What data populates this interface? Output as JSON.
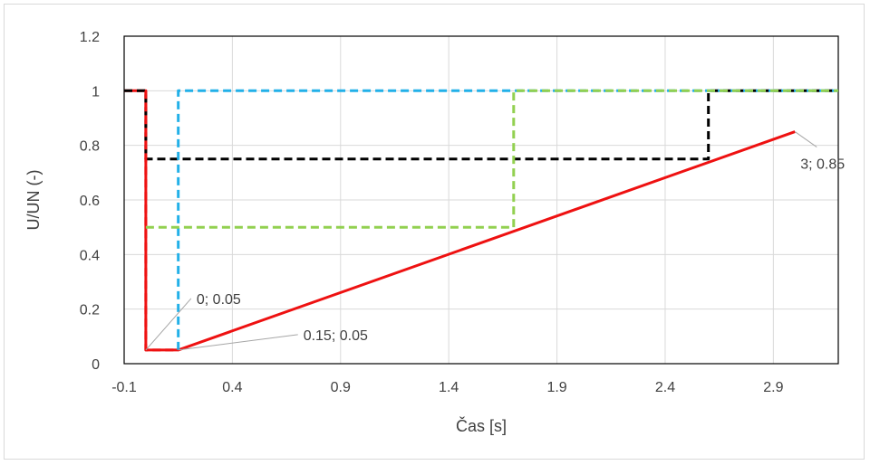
{
  "chart_data": {
    "type": "line",
    "title": "",
    "xlabel": "Čas [s]",
    "ylabel": "U/UN (-)",
    "xlim": [
      -0.1,
      3.2
    ],
    "ylim": [
      0,
      1.2
    ],
    "x_ticks": [
      -0.1,
      0.4,
      0.9,
      1.4,
      1.9,
      2.4,
      2.9
    ],
    "x_tick_labels": [
      "-0.1",
      "0.4",
      "0.9",
      "1.4",
      "1.9",
      "2.4",
      "2.9"
    ],
    "y_ticks": [
      0,
      0.2,
      0.4,
      0.6,
      0.8,
      1,
      1.2
    ],
    "y_tick_labels": [
      "0",
      "0.2",
      "0.4",
      "0.6",
      "0.8",
      "1",
      "1.2"
    ],
    "grid": true,
    "legend": "none",
    "series": [
      {
        "color": "#ee1111",
        "style": "solid",
        "points": [
          [
            -0.1,
            1
          ],
          [
            0,
            1
          ],
          [
            0,
            0.05
          ],
          [
            0.15,
            0.05
          ],
          [
            3,
            0.85
          ]
        ]
      },
      {
        "color": "#000000",
        "style": "dashed",
        "points": [
          [
            -0.1,
            1
          ],
          [
            0,
            1
          ],
          [
            0,
            0.75
          ],
          [
            2.6,
            0.75
          ],
          [
            2.6,
            1
          ],
          [
            3.2,
            1
          ]
        ]
      },
      {
        "color": "#22b0e8",
        "style": "dashed",
        "points": [
          [
            0.15,
            0.05
          ],
          [
            0.15,
            1
          ],
          [
            3.2,
            1
          ]
        ]
      },
      {
        "color": "#92d050",
        "style": "dashed",
        "points": [
          [
            0,
            0.5
          ],
          [
            1.7,
            0.5
          ],
          [
            1.7,
            1
          ],
          [
            3.2,
            1
          ]
        ]
      },
      {
        "color": "#ee1111",
        "style": "dashed",
        "points": [
          [
            0,
            1
          ],
          [
            0,
            0.05
          ],
          [
            0.15,
            0.05
          ]
        ]
      }
    ],
    "annotations": [
      {
        "text": "0; 0.05",
        "x": 0,
        "y": 0.05
      },
      {
        "text": "0.15; 0.05",
        "x": 0.15,
        "y": 0.05
      },
      {
        "text": "3; 0.85",
        "x": 3,
        "y": 0.85
      }
    ]
  }
}
